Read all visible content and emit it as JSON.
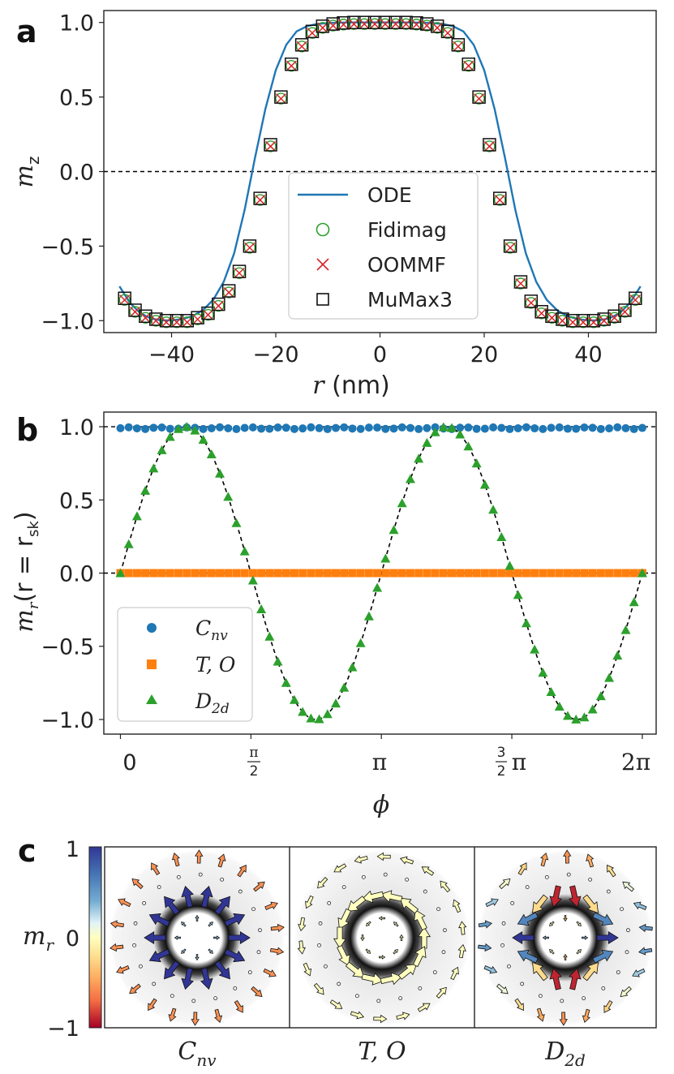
{
  "panels": {
    "a": "a",
    "b": "b",
    "c": "c"
  },
  "colors": {
    "ode": "#1f77b4",
    "fidimag": "#2ca02c",
    "oommf": "#d62728",
    "mumax": "#111111",
    "cnv": "#1f77b4",
    "to": "#ff7f0e",
    "d2d": "#2ca02c"
  },
  "chart_data": [
    {
      "type": "line",
      "title": "",
      "xlabel_var": "r",
      "xlabel_unit": " (nm)",
      "ylabel_base": "m",
      "ylabel_sub": "z",
      "xlim": [
        -53,
        53
      ],
      "ylim": [
        -1.08,
        1.08
      ],
      "xticks": [
        -40,
        -20,
        0,
        20,
        40
      ],
      "xtick_labels": [
        "−40",
        "−20",
        "0",
        "20",
        "40"
      ],
      "yticks": [
        -1.0,
        -0.5,
        0.0,
        0.5,
        1.0
      ],
      "ytick_labels": [
        "−1.0",
        "−0.5",
        "0.0",
        "0.5",
        "1.0"
      ],
      "reference_line_y": 0.0,
      "legend": [
        "ODE",
        "Fidimag",
        "OOMMF",
        "MuMax3"
      ],
      "legend_position": "lower-center",
      "ode_curve": {
        "r": [
          -50,
          -48,
          -46,
          -44,
          -42,
          -40,
          -38,
          -36,
          -34,
          -32,
          -30,
          -28,
          -26,
          -24,
          -22,
          -20,
          -18,
          -16,
          -14,
          -12,
          -10,
          -8,
          -6,
          -4,
          -2,
          0,
          2,
          4,
          6,
          8,
          10,
          12,
          14,
          16,
          18,
          20,
          22,
          24,
          26,
          28,
          30,
          32,
          34,
          36,
          38,
          40,
          42,
          44,
          46,
          48,
          50
        ],
        "mz": [
          -0.77,
          -0.88,
          -0.95,
          -0.985,
          -0.998,
          -0.998,
          -0.99,
          -0.97,
          -0.93,
          -0.86,
          -0.74,
          -0.55,
          -0.26,
          0.09,
          0.42,
          0.68,
          0.85,
          0.94,
          0.975,
          0.99,
          0.996,
          0.999,
          1.0,
          1.0,
          1.0,
          1.0,
          1.0,
          1.0,
          1.0,
          0.999,
          0.996,
          0.99,
          0.975,
          0.94,
          0.85,
          0.68,
          0.42,
          0.09,
          -0.26,
          -0.55,
          -0.74,
          -0.86,
          -0.93,
          -0.97,
          -0.99,
          -0.998,
          -0.998,
          -0.985,
          -0.95,
          -0.88,
          -0.77
        ]
      },
      "simulation_points": {
        "r": [
          -49,
          -47,
          -45,
          -43,
          -41,
          -39,
          -37,
          -35,
          -33,
          -31,
          -29,
          -27,
          -25,
          -23,
          -21,
          -19,
          -17,
          -15,
          -13,
          -11,
          -9,
          -7,
          -5,
          -3,
          -1,
          1,
          3,
          5,
          7,
          9,
          11,
          13,
          15,
          17,
          19,
          21,
          23,
          25,
          27,
          29,
          31,
          33,
          35,
          37,
          39,
          41,
          43,
          45,
          47,
          49
        ],
        "mz": [
          -0.85,
          -0.93,
          -0.97,
          -0.99,
          -1.0,
          -1.0,
          -1.0,
          -0.98,
          -0.95,
          -0.89,
          -0.8,
          -0.67,
          -0.5,
          -0.18,
          0.18,
          0.5,
          0.72,
          0.85,
          0.94,
          0.975,
          0.99,
          0.997,
          1.0,
          1.0,
          1.0,
          1.0,
          1.0,
          1.0,
          0.997,
          0.99,
          0.975,
          0.94,
          0.85,
          0.72,
          0.5,
          0.18,
          -0.18,
          -0.5,
          -0.74,
          -0.87,
          -0.94,
          -0.97,
          -0.99,
          -1.0,
          -1.0,
          -1.0,
          -0.99,
          -0.97,
          -0.93,
          -0.85
        ]
      }
    },
    {
      "type": "scatter",
      "xlabel": "ϕ",
      "ylabel_base": "m",
      "ylabel_sub": "r",
      "ylabel_paren": "(r = r",
      "ylabel_sk": "sk",
      "ylabel_close": ")",
      "xlim": [
        -0.2,
        6.45
      ],
      "ylim": [
        -1.1,
        1.1
      ],
      "xtick_values": [
        0,
        1.5708,
        3.1416,
        4.7124,
        6.2832
      ],
      "xtick_labels": [
        "0",
        "π/2",
        "π",
        "3/2 π",
        "2π"
      ],
      "yticks": [
        -1.0,
        -0.5,
        0.0,
        0.5,
        1.0
      ],
      "ytick_labels": [
        "−1.0",
        "−0.5",
        "0.0",
        "0.5",
        "1.0"
      ],
      "reference_lines_y": [
        0.0,
        1.0
      ],
      "fit_curve": "sin(2*phi)",
      "legend_position": "lower-left",
      "series": [
        {
          "name_base": "C",
          "name_sub": "nv",
          "marker": "circle",
          "n_points": 64,
          "value": 0.99
        },
        {
          "name_base": "T, O",
          "name_sub": "",
          "marker": "square",
          "n_points": 64,
          "value": 0.0
        },
        {
          "name_base": "D",
          "name_sub": "2d",
          "marker": "triangle",
          "n_points": 64,
          "values_follow": "sin(2*phi)"
        }
      ]
    },
    {
      "type": "heatmap",
      "colorbar_label_base": "m",
      "colorbar_label_sub": "r",
      "colorbar_ticks": [
        "1",
        "0",
        "−1"
      ],
      "colorbar_range": [
        -1,
        1
      ],
      "colormap": "RdYlBu",
      "subpanels": [
        {
          "label_base": "C",
          "label_sub": "nv",
          "pattern": "radial"
        },
        {
          "label_base": "T, O",
          "label_sub": "",
          "pattern": "azimuthal"
        },
        {
          "label_base": "D",
          "label_sub": "2d",
          "pattern": "antiskyrmion"
        }
      ]
    }
  ]
}
